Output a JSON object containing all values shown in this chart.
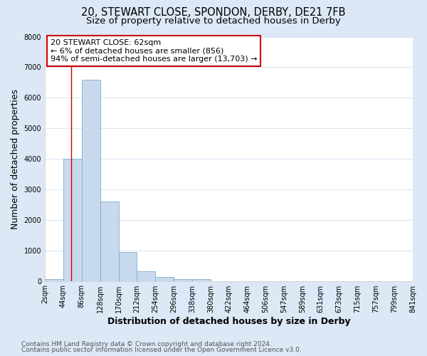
{
  "title_line1": "20, STEWART CLOSE, SPONDON, DERBY, DE21 7FB",
  "title_line2": "Size of property relative to detached houses in Derby",
  "xlabel": "Distribution of detached houses by size in Derby",
  "ylabel": "Number of detached properties",
  "bin_edges": [
    2,
    44,
    86,
    128,
    170,
    212,
    254,
    296,
    338,
    380,
    422,
    464,
    506,
    547,
    589,
    631,
    673,
    715,
    757,
    799,
    841
  ],
  "bin_counts": [
    50,
    4000,
    6600,
    2600,
    950,
    310,
    120,
    50,
    50,
    0,
    0,
    0,
    0,
    0,
    0,
    0,
    0,
    0,
    0,
    0
  ],
  "bar_facecolor": "#c8d9ee",
  "bar_edgecolor": "#7aadd4",
  "property_size": 62,
  "vline_color": "#cc0000",
  "annotation_title": "20 STEWART CLOSE: 62sqm",
  "annotation_line1": "← 6% of detached houses are smaller (856)",
  "annotation_line2": "94% of semi-detached houses are larger (13,703) →",
  "annotation_box_edgecolor": "#cc0000",
  "annotation_box_facecolor": "#ffffff",
  "ylim": [
    0,
    8000
  ],
  "yticks": [
    0,
    1000,
    2000,
    3000,
    4000,
    5000,
    6000,
    7000,
    8000
  ],
  "tick_labels": [
    "2sqm",
    "44sqm",
    "86sqm",
    "128sqm",
    "170sqm",
    "212sqm",
    "254sqm",
    "296sqm",
    "338sqm",
    "380sqm",
    "422sqm",
    "464sqm",
    "506sqm",
    "547sqm",
    "589sqm",
    "631sqm",
    "673sqm",
    "715sqm",
    "757sqm",
    "799sqm",
    "841sqm"
  ],
  "footer_line1": "Contains HM Land Registry data © Crown copyright and database right 2024.",
  "footer_line2": "Contains public sector information licensed under the Open Government Licence v3.0.",
  "plot_bg_color": "#ffffff",
  "outer_bg_color": "#dce8f5",
  "grid_color": "#dce8f5",
  "title_fontsize": 10.5,
  "subtitle_fontsize": 9.5,
  "axis_label_fontsize": 9,
  "tick_fontsize": 7,
  "footer_fontsize": 6.5,
  "annotation_fontsize": 8
}
